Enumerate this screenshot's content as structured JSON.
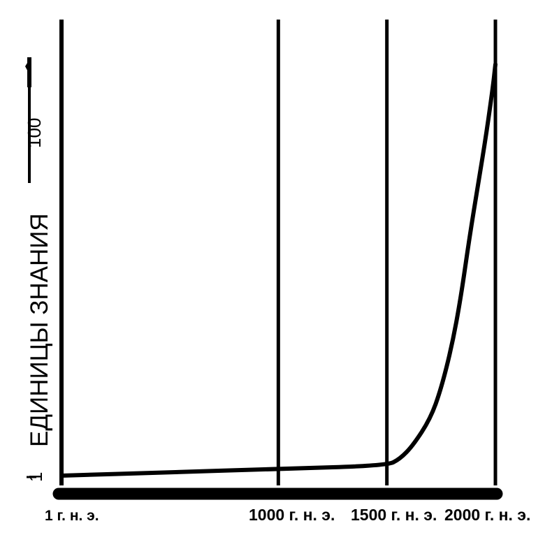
{
  "chart_data": {
    "type": "line",
    "title": "",
    "ylabel": "ЕДИНИЦЫ ЗНАНИЯ",
    "xlabel": "",
    "x_ticks": [
      {
        "value": 1,
        "label": "1 г. н. э."
      },
      {
        "value": 1000,
        "label": "1000 г. н. э."
      },
      {
        "value": 1500,
        "label": "1500 г. н. э."
      },
      {
        "value": 2000,
        "label": "2000 г. н. э."
      }
    ],
    "y_ticks": [
      {
        "value": 1,
        "label": "1"
      },
      {
        "value": 100,
        "label": "100"
      }
    ],
    "xlim": [
      1,
      2000
    ],
    "grid": "vertical lines at tick years",
    "series": [
      {
        "x": [
          1,
          500,
          1000,
          1500,
          1560,
          1620,
          1700,
          1750,
          1800,
          1840,
          1880,
          1920,
          1960,
          1990,
          2000
        ],
        "y": [
          1,
          2,
          3,
          4,
          6,
          10,
          18,
          27,
          40,
          54,
          72,
          88,
          104,
          118,
          124
        ]
      }
    ]
  }
}
